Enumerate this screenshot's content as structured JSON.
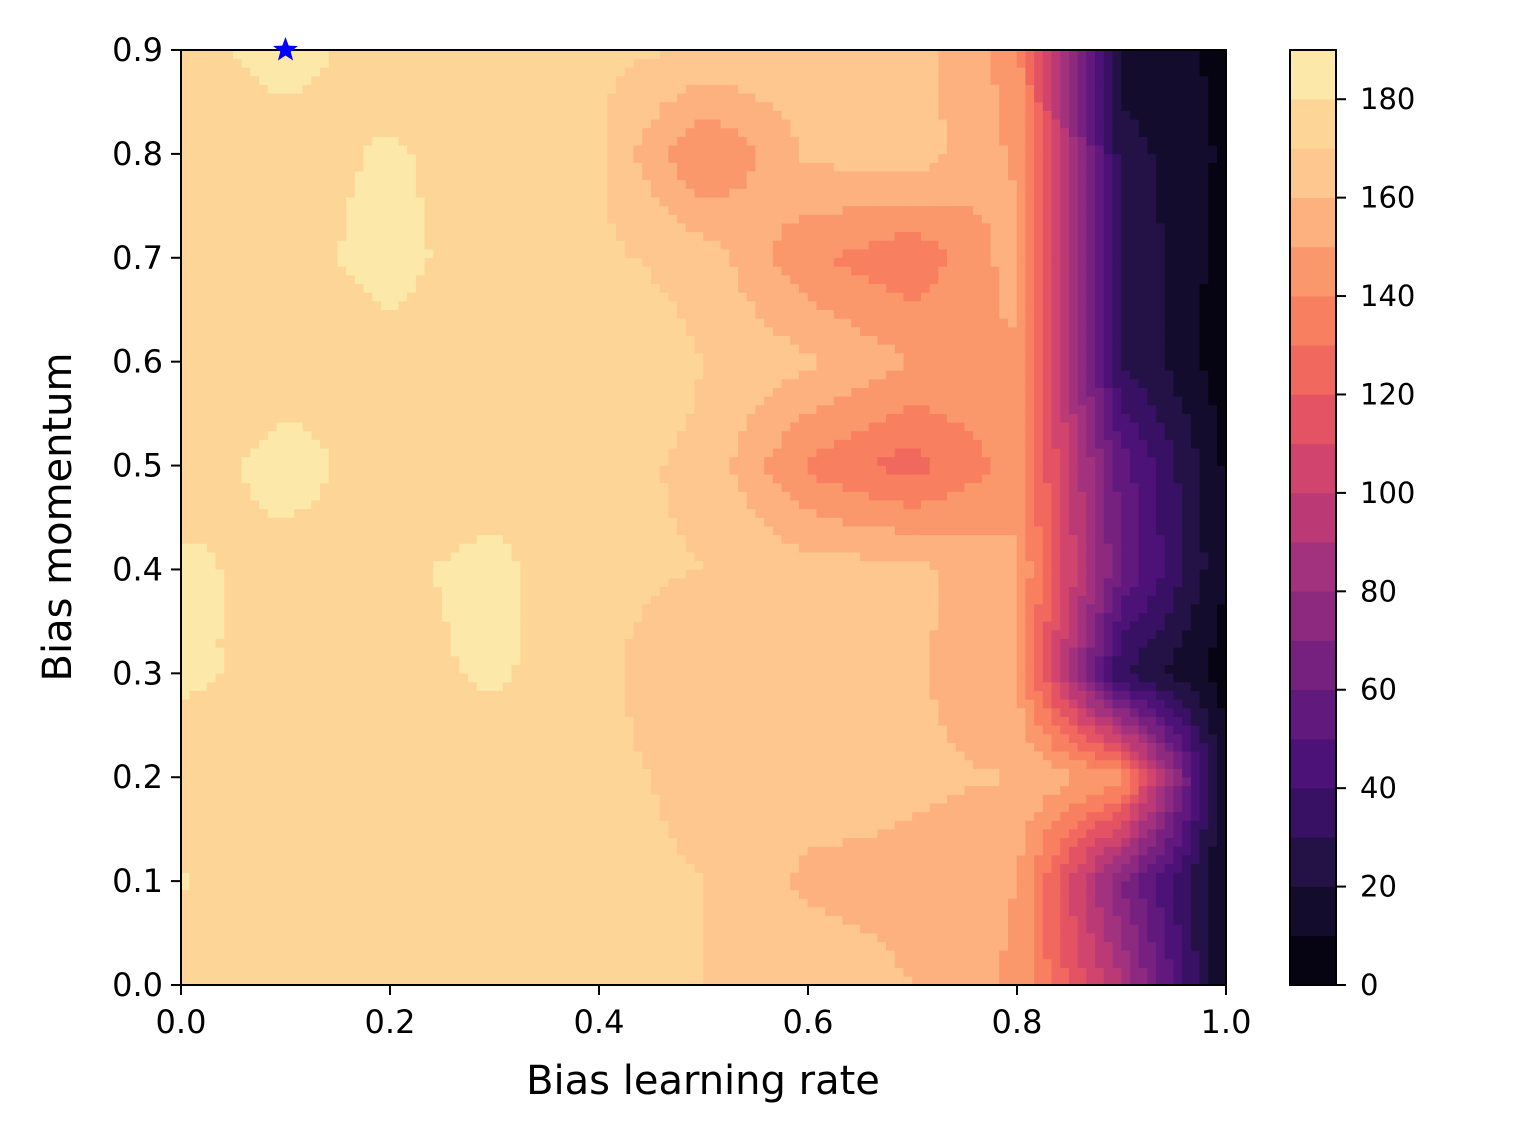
{
  "chart_data": {
    "type": "contour",
    "title": "",
    "xlabel": "Bias learning rate",
    "ylabel": "Bias momentum",
    "xlim": [
      0.0,
      1.0
    ],
    "ylim": [
      0.0,
      0.9
    ],
    "x_ticks": [
      "0.0",
      "0.2",
      "0.4",
      "0.6",
      "0.8",
      "1.0"
    ],
    "y_ticks": [
      "0.0",
      "0.1",
      "0.2",
      "0.3",
      "0.4",
      "0.5",
      "0.6",
      "0.7",
      "0.8",
      "0.9"
    ],
    "colorbar": {
      "colormap": "magma",
      "range": [
        0,
        190
      ],
      "level_step": 10,
      "ticks": [
        "0",
        "20",
        "40",
        "60",
        "80",
        "100",
        "120",
        "140",
        "160",
        "180"
      ]
    },
    "grid_x": [
      0.0,
      0.1,
      0.2,
      0.3,
      0.4,
      0.5,
      0.6,
      0.7,
      0.8,
      0.9,
      1.0
    ],
    "grid_y": [
      0.0,
      0.1,
      0.2,
      0.3,
      0.4,
      0.5,
      0.6,
      0.7,
      0.8,
      0.9
    ],
    "z": [
      [
        175,
        174,
        173,
        173,
        172,
        170,
        166,
        160,
        148,
        90,
        8
      ],
      [
        181,
        174,
        174,
        173,
        172,
        170,
        158,
        157,
        150,
        70,
        8
      ],
      [
        172,
        172,
        172,
        172,
        172,
        168,
        165,
        162,
        160,
        145,
        12
      ],
      [
        183,
        175,
        176,
        182,
        172,
        163,
        165,
        162,
        150,
        30,
        5
      ],
      [
        183,
        175,
        178,
        183,
        172,
        170,
        165,
        163,
        152,
        60,
        10
      ],
      [
        173,
        185,
        174,
        175,
        173,
        168,
        138,
        125,
        145,
        55,
        8
      ],
      [
        172,
        174,
        175,
        173,
        180,
        170,
        162,
        150,
        148,
        30,
        4
      ],
      [
        172,
        175,
        185,
        172,
        172,
        166,
        142,
        132,
        155,
        30,
        5
      ],
      [
        172,
        174,
        182,
        172,
        172,
        138,
        162,
        166,
        148,
        25,
        8
      ],
      [
        176,
        185,
        173,
        172,
        172,
        170,
        166,
        164,
        145,
        15,
        8
      ]
    ],
    "marker": {
      "x": 0.1,
      "y": 0.9,
      "shape": "star",
      "color": "#0000ff"
    }
  }
}
